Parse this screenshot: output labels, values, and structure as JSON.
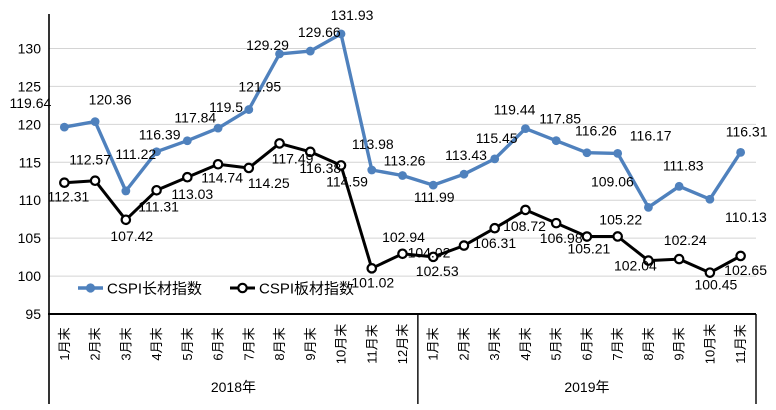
{
  "chart_data": {
    "type": "line",
    "title": "",
    "xlabel": "",
    "ylabel": "",
    "y_axis": {
      "min": 95,
      "max": 133.5,
      "ticks": [
        95,
        100,
        105,
        110,
        115,
        120,
        125,
        130
      ],
      "grid": true
    },
    "x_axis": {
      "groups": [
        {
          "year_label": "2018年",
          "months": [
            "1月末",
            "2月末",
            "3月末",
            "4月末",
            "5月末",
            "6月末",
            "7月末",
            "8月末",
            "9月末",
            "10月末",
            "11月末",
            "12月末"
          ]
        },
        {
          "year_label": "2019年",
          "months": [
            "1月末",
            "2月末",
            "3月末",
            "4月末",
            "5月末",
            "6月末",
            "7月末",
            "8月末",
            "9月末",
            "10月末",
            "11月末"
          ]
        }
      ]
    },
    "series": [
      {
        "name": "CSPI长材指数",
        "color": "#4F81BD",
        "marker": "filled-circle",
        "values": [
          119.64,
          120.36,
          111.22,
          116.39,
          117.84,
          119.5,
          121.95,
          129.29,
          129.66,
          131.93,
          113.98,
          113.26,
          111.99,
          113.43,
          115.45,
          119.44,
          117.85,
          116.26,
          116.17,
          109.06,
          111.83,
          110.13,
          116.31
        ]
      },
      {
        "name": "CSPI板材指数",
        "color": "#000000",
        "marker": "open-circle",
        "values": [
          112.31,
          112.57,
          107.42,
          111.31,
          113.03,
          114.74,
          114.25,
          117.49,
          116.38,
          114.59,
          101.02,
          102.94,
          102.53,
          104.02,
          106.31,
          108.72,
          106.98,
          105.21,
          105.22,
          102.04,
          102.24,
          100.45,
          102.65
        ]
      }
    ],
    "colors": {
      "gridline": "#D4D4D4",
      "axis": "#000000",
      "label_text": "#000000"
    },
    "legend_position": "inside-bottom-left"
  }
}
